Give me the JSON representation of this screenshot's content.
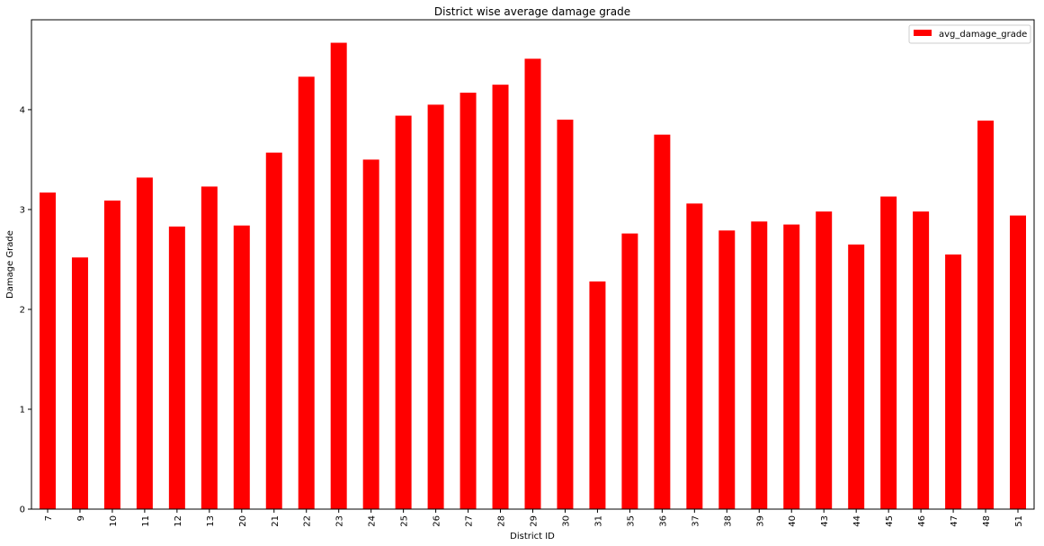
{
  "chart_data": {
    "type": "bar",
    "title": "District wise average damage grade",
    "xlabel": "District ID",
    "ylabel": "Damage Grade",
    "categories": [
      "7",
      "9",
      "10",
      "11",
      "12",
      "13",
      "20",
      "21",
      "22",
      "23",
      "24",
      "25",
      "26",
      "27",
      "28",
      "29",
      "30",
      "31",
      "35",
      "36",
      "37",
      "38",
      "39",
      "40",
      "43",
      "44",
      "45",
      "46",
      "47",
      "48",
      "51"
    ],
    "series": [
      {
        "name": "avg_damage_grade",
        "color": "#ff0000",
        "values": [
          3.17,
          2.52,
          3.09,
          3.32,
          2.83,
          3.23,
          2.84,
          3.57,
          4.33,
          4.67,
          3.5,
          3.94,
          4.05,
          4.17,
          4.25,
          4.51,
          3.9,
          2.28,
          2.76,
          3.75,
          3.06,
          2.79,
          2.88,
          2.85,
          2.98,
          2.65,
          3.13,
          2.98,
          2.55,
          3.89,
          2.94
        ]
      }
    ],
    "ylim": [
      0,
      4.9
    ],
    "yticks": [
      0,
      1,
      2,
      3,
      4
    ],
    "grid": false,
    "legend_position": "top-right"
  }
}
